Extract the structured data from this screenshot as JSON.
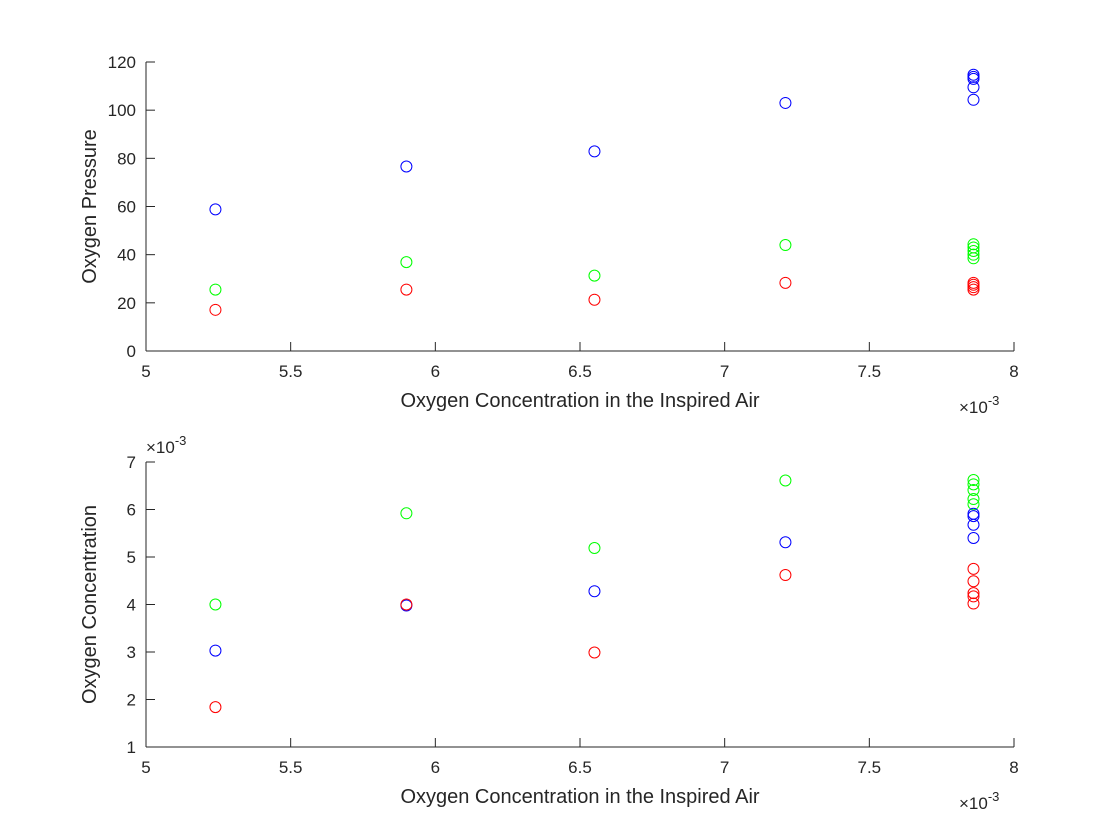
{
  "chart_data": [
    {
      "type": "scatter",
      "xlabel": "Oxygen Concentration in the Inspired Air",
      "ylabel": "Oxygen Pressure",
      "xlim": [
        0.005,
        0.008
      ],
      "ylim": [
        0,
        120
      ],
      "x_ticks": [
        5,
        5.5,
        6,
        6.5,
        7,
        7.5,
        8
      ],
      "x_tick_labels": [
        "5",
        "5.5",
        "6",
        "6.5",
        "7",
        "7.5",
        "8"
      ],
      "x_exponent_label": "×10",
      "x_exponent_power": "-3",
      "y_ticks": [
        0,
        20,
        40,
        60,
        80,
        100,
        120
      ],
      "y_tick_labels": [
        "0",
        "20",
        "40",
        "60",
        "80",
        "100",
        "120"
      ],
      "marker": "circle",
      "grid": false,
      "series": [
        {
          "color": "#0000ff",
          "points": [
            [
              0.00524,
              58.8
            ],
            [
              0.0059,
              76.6
            ],
            [
              0.00655,
              82.9
            ],
            [
              0.00721,
              103.0
            ],
            [
              0.00786,
              104.3
            ],
            [
              0.00786,
              109.5
            ],
            [
              0.00786,
              113.0
            ],
            [
              0.00786,
              113.8
            ],
            [
              0.00786,
              114.7
            ]
          ]
        },
        {
          "color": "#00ff00",
          "points": [
            [
              0.00524,
              25.5
            ],
            [
              0.0059,
              36.9
            ],
            [
              0.00655,
              31.3
            ],
            [
              0.00721,
              44.0
            ],
            [
              0.00786,
              38.5
            ],
            [
              0.00786,
              40.0
            ],
            [
              0.00786,
              41.5
            ],
            [
              0.00786,
              43.0
            ],
            [
              0.00786,
              44.3
            ]
          ]
        },
        {
          "color": "#ff0000",
          "points": [
            [
              0.00524,
              17.1
            ],
            [
              0.0059,
              25.5
            ],
            [
              0.00655,
              21.3
            ],
            [
              0.00721,
              28.3
            ],
            [
              0.00786,
              25.5
            ],
            [
              0.00786,
              26.5
            ],
            [
              0.00786,
              27.5
            ],
            [
              0.00786,
              28.3
            ]
          ]
        }
      ]
    },
    {
      "type": "scatter",
      "xlabel": "Oxygen Concentration in the Inspired Air",
      "ylabel": "Oxygen Concentration",
      "xlim": [
        0.005,
        0.008
      ],
      "ylim": [
        0.001,
        0.007
      ],
      "x_ticks": [
        5,
        5.5,
        6,
        6.5,
        7,
        7.5,
        8
      ],
      "x_tick_labels": [
        "5",
        "5.5",
        "6",
        "6.5",
        "7",
        "7.5",
        "8"
      ],
      "x_exponent_label": "×10",
      "x_exponent_power": "-3",
      "y_ticks": [
        1,
        2,
        3,
        4,
        5,
        6,
        7
      ],
      "y_tick_labels": [
        "1",
        "2",
        "3",
        "4",
        "5",
        "6",
        "7"
      ],
      "y_exponent_label": "×10",
      "y_exponent_power": "-3",
      "marker": "circle",
      "grid": false,
      "series": [
        {
          "color": "#00ff00",
          "points": [
            [
              0.00524,
              0.004
            ],
            [
              0.0059,
              0.00592
            ],
            [
              0.00655,
              0.00519
            ],
            [
              0.00721,
              0.00661
            ],
            [
              0.00786,
              0.00611
            ],
            [
              0.00786,
              0.00622
            ],
            [
              0.00786,
              0.00641
            ],
            [
              0.00786,
              0.00653
            ],
            [
              0.00786,
              0.00662
            ]
          ]
        },
        {
          "color": "#0000ff",
          "points": [
            [
              0.00524,
              0.00303
            ],
            [
              0.0059,
              0.00398
            ],
            [
              0.00655,
              0.00428
            ],
            [
              0.00721,
              0.00531
            ],
            [
              0.00786,
              0.0054
            ],
            [
              0.00786,
              0.00568
            ],
            [
              0.00786,
              0.00586
            ],
            [
              0.00786,
              0.00591
            ]
          ]
        },
        {
          "color": "#ff0000",
          "points": [
            [
              0.00524,
              0.00184
            ],
            [
              0.0059,
              0.004
            ],
            [
              0.00655,
              0.00299
            ],
            [
              0.00721,
              0.00462
            ],
            [
              0.00786,
              0.00402
            ],
            [
              0.00786,
              0.00417
            ],
            [
              0.00786,
              0.00424
            ],
            [
              0.00786,
              0.00449
            ],
            [
              0.00786,
              0.00475
            ]
          ]
        }
      ]
    }
  ]
}
